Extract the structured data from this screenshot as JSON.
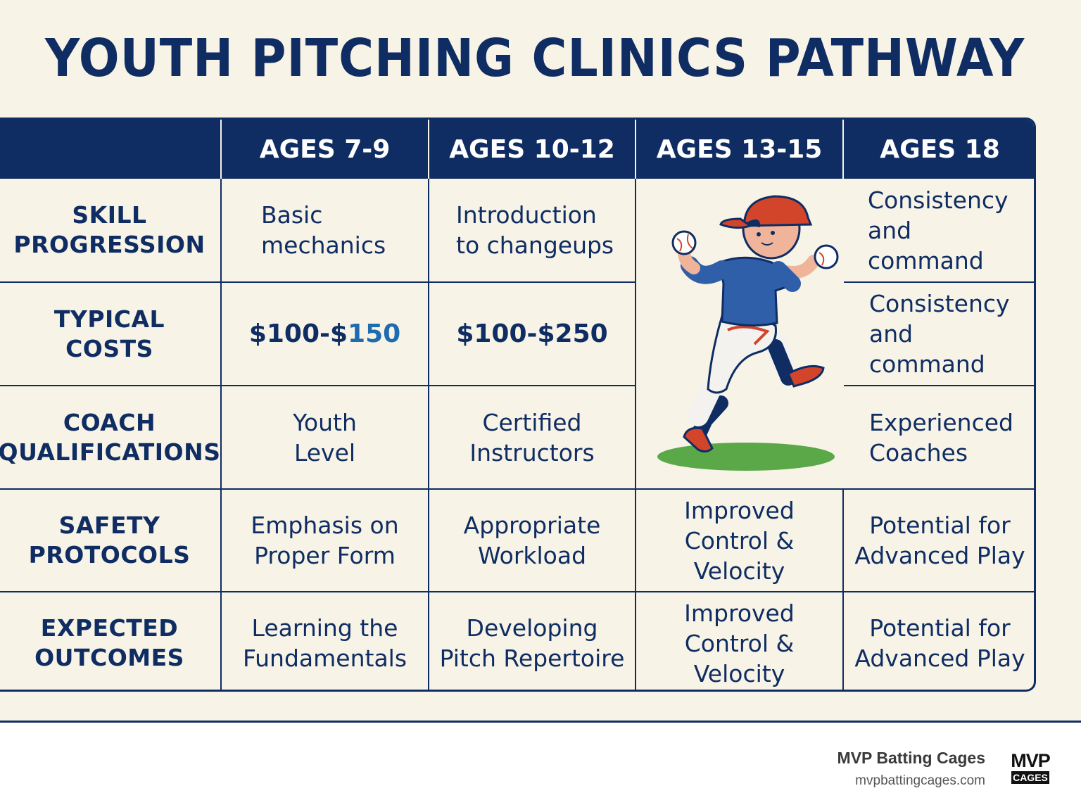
{
  "title": "YOUTH PITCHING CLINICS PATHWAY",
  "table": {
    "headers": [
      "",
      "AGES 7-9",
      "AGES 10-12",
      "AGES 13-15",
      "AGES 18"
    ],
    "rows": [
      {
        "label": [
          "SKILL",
          "PROGRESSION"
        ],
        "cells": [
          [
            "Basic",
            "mechanics"
          ],
          [
            "Introduction",
            "to changeups"
          ],
          null,
          [
            "Consistency",
            "and command"
          ]
        ]
      },
      {
        "label": [
          "TYPICAL",
          "COSTS"
        ],
        "cells": [
          [
            "$100-$",
            "150"
          ],
          [
            "$100-$250"
          ],
          null,
          [
            "Consistency",
            "and command"
          ]
        ]
      },
      {
        "label": [
          "COACH",
          "QUALIFICATIONS"
        ],
        "cells": [
          [
            "Youth",
            "Level"
          ],
          [
            "Certified",
            "Instructors"
          ],
          null,
          [
            "Experienced",
            "Coaches"
          ]
        ]
      },
      {
        "label": [
          "SAFETY",
          "PROTOCOLS"
        ],
        "cells": [
          [
            "Emphasis on",
            "Proper Form"
          ],
          [
            "Appropriate",
            "Workload"
          ],
          [
            "Improved",
            "Control & Velocity"
          ],
          [
            "Potential for",
            "Advanced Play"
          ]
        ]
      },
      {
        "label": [
          "EXPECTED",
          "OUTCOMES"
        ],
        "cells": [
          [
            "Learning the",
            "Fundamentals"
          ],
          [
            "Developing",
            "Pitch Repertoire"
          ],
          [
            "Improved",
            "Control & Velocity"
          ],
          [
            "Potential for",
            "Advanced Play"
          ]
        ]
      }
    ]
  },
  "illustration": {
    "icon": "pitcher-illustration-icon"
  },
  "footer": {
    "brand_name": "MVP Batting Cages",
    "brand_url": "mvpbattingcages.com",
    "logo_top": "MVP",
    "logo_bottom": "CAGES"
  },
  "colors": {
    "navy": "#0f2d63",
    "cream": "#f7f3e6",
    "accent_blue": "#1f6bb0",
    "cap_red": "#d2452b",
    "grass": "#5aa847"
  }
}
